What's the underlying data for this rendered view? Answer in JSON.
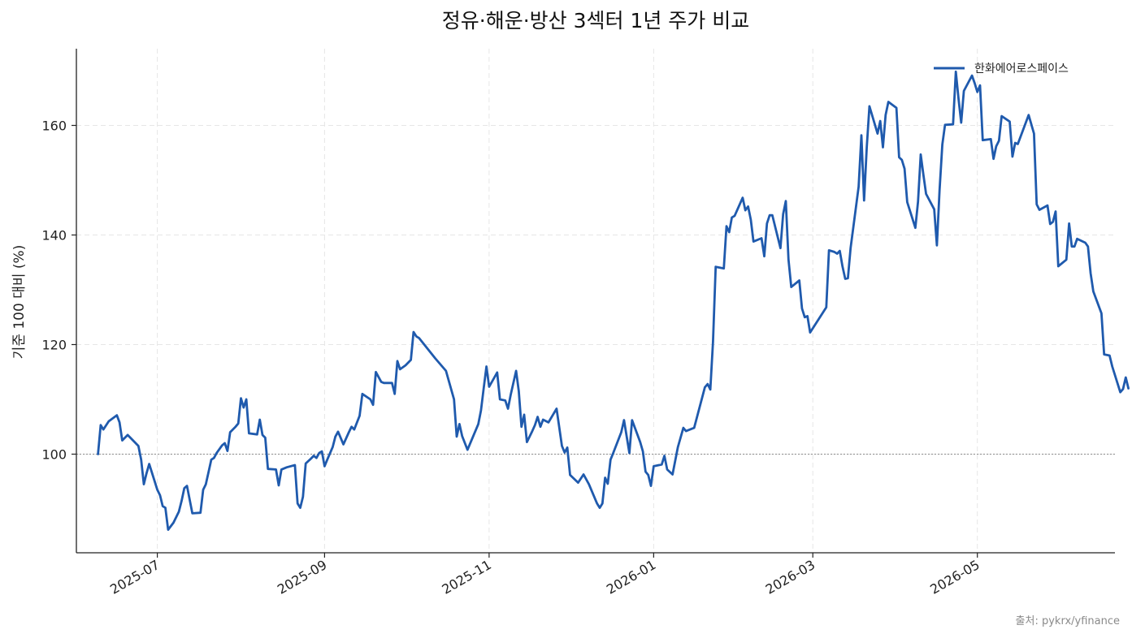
{
  "chart_data": {
    "type": "line",
    "title": "정유·해운·방산 3섹터 1년 주가 비교",
    "xlabel": "",
    "ylabel": "기준 100 대비 (%)",
    "source": "출처: pykrx/yfinance",
    "x_axis": {
      "type": "date",
      "range": [
        "2025-06-01",
        "2026-06-21"
      ],
      "ticks": [
        "2025-07",
        "2025-09",
        "2025-11",
        "2026-01",
        "2026-03",
        "2026-05"
      ]
    },
    "y_axis": {
      "range": [
        82,
        174
      ],
      "ticks": [
        100,
        120,
        140,
        160
      ]
    },
    "grid": true,
    "baseline": 100,
    "legend": {
      "position": "top-right"
    },
    "series": [
      {
        "name": "한화에어로스페이스",
        "color": "#1f5aad",
        "points": [
          [
            "2025-06-09",
            100
          ],
          [
            "2025-06-10",
            105.3
          ],
          [
            "2025-06-11",
            104.5
          ],
          [
            "2025-06-13",
            106
          ],
          [
            "2025-06-16",
            107.1
          ],
          [
            "2025-06-17",
            105.8
          ],
          [
            "2025-06-18",
            102.5
          ],
          [
            "2025-06-20",
            103.5
          ],
          [
            "2025-06-24",
            101.5
          ],
          [
            "2025-06-25",
            99
          ],
          [
            "2025-06-26",
            94.5
          ],
          [
            "2025-06-27",
            96.5
          ],
          [
            "2025-06-28",
            98.2
          ],
          [
            "2025-07-01",
            93.5
          ],
          [
            "2025-07-02",
            92.5
          ],
          [
            "2025-07-03",
            90.5
          ],
          [
            "2025-07-04",
            90.2
          ],
          [
            "2025-07-05",
            86.2
          ],
          [
            "2025-07-07",
            87.5
          ],
          [
            "2025-07-08",
            88.5
          ],
          [
            "2025-07-09",
            89.5
          ],
          [
            "2025-07-10",
            91.5
          ],
          [
            "2025-07-11",
            93.8
          ],
          [
            "2025-07-12",
            94.2
          ],
          [
            "2025-07-14",
            89.2
          ],
          [
            "2025-07-17",
            89.3
          ],
          [
            "2025-07-18",
            93.5
          ],
          [
            "2025-07-19",
            94.5
          ],
          [
            "2025-07-21",
            99
          ],
          [
            "2025-07-22",
            99.3
          ],
          [
            "2025-07-23",
            100.2
          ],
          [
            "2025-07-25",
            101.6
          ],
          [
            "2025-07-26",
            102
          ],
          [
            "2025-07-27",
            100.6
          ],
          [
            "2025-07-28",
            104
          ],
          [
            "2025-07-30",
            105
          ],
          [
            "2025-07-31",
            105.6
          ],
          [
            "2025-08-01",
            110.2
          ],
          [
            "2025-08-02",
            108.5
          ],
          [
            "2025-08-03",
            110
          ],
          [
            "2025-08-04",
            103.8
          ],
          [
            "2025-08-07",
            103.6
          ],
          [
            "2025-08-08",
            106.3
          ],
          [
            "2025-08-09",
            103.5
          ],
          [
            "2025-08-10",
            103
          ],
          [
            "2025-08-11",
            97.3
          ],
          [
            "2025-08-14",
            97.2
          ],
          [
            "2025-08-15",
            94.3
          ],
          [
            "2025-08-16",
            97.2
          ],
          [
            "2025-08-18",
            97.6
          ],
          [
            "2025-08-21",
            98
          ],
          [
            "2025-08-22",
            91
          ],
          [
            "2025-08-23",
            90.2
          ],
          [
            "2025-08-24",
            92.2
          ],
          [
            "2025-08-25",
            98.3
          ],
          [
            "2025-08-27",
            99.2
          ],
          [
            "2025-08-28",
            99.7
          ],
          [
            "2025-08-29",
            99.3
          ],
          [
            "2025-08-30",
            100.2
          ],
          [
            "2025-08-31",
            100.5
          ],
          [
            "2025-09-01",
            97.8
          ],
          [
            "2025-09-02",
            99
          ],
          [
            "2025-09-04",
            101.3
          ],
          [
            "2025-09-05",
            103.2
          ],
          [
            "2025-09-06",
            104.1
          ],
          [
            "2025-09-08",
            101.8
          ],
          [
            "2025-09-10",
            104
          ],
          [
            "2025-09-11",
            105
          ],
          [
            "2025-09-12",
            104.5
          ],
          [
            "2025-09-14",
            107
          ],
          [
            "2025-09-15",
            111
          ],
          [
            "2025-09-18",
            110
          ],
          [
            "2025-09-19",
            109
          ],
          [
            "2025-09-20",
            115
          ],
          [
            "2025-09-22",
            113.2
          ],
          [
            "2025-09-23",
            113
          ],
          [
            "2025-09-26",
            113
          ],
          [
            "2025-09-27",
            111
          ],
          [
            "2025-09-28",
            117
          ],
          [
            "2025-09-29",
            115.5
          ],
          [
            "2025-10-01",
            116.2
          ],
          [
            "2025-10-03",
            117.2
          ],
          [
            "2025-10-04",
            122.3
          ],
          [
            "2025-10-05",
            121.5
          ],
          [
            "2025-10-06",
            121.2
          ],
          [
            "2025-10-12",
            117.5
          ],
          [
            "2025-10-16",
            115.2
          ],
          [
            "2025-10-19",
            110
          ],
          [
            "2025-10-20",
            103.2
          ],
          [
            "2025-10-21",
            105.5
          ],
          [
            "2025-10-22",
            103.3
          ],
          [
            "2025-10-24",
            100.8
          ],
          [
            "2025-10-28",
            105.5
          ],
          [
            "2025-10-29",
            108
          ],
          [
            "2025-10-30",
            112
          ],
          [
            "2025-10-31",
            116
          ],
          [
            "2025-11-01",
            112.3
          ],
          [
            "2025-11-04",
            114.9
          ],
          [
            "2025-11-05",
            110
          ],
          [
            "2025-11-07",
            109.8
          ],
          [
            "2025-11-08",
            108.3
          ],
          [
            "2025-11-09",
            110.8
          ],
          [
            "2025-11-11",
            115.2
          ],
          [
            "2025-11-12",
            111.5
          ],
          [
            "2025-11-13",
            105
          ],
          [
            "2025-11-14",
            107.2
          ],
          [
            "2025-11-15",
            102.2
          ],
          [
            "2025-11-17",
            104.2
          ],
          [
            "2025-11-18",
            105.3
          ],
          [
            "2025-11-19",
            106.8
          ],
          [
            "2025-11-20",
            105
          ],
          [
            "2025-11-21",
            106.3
          ],
          [
            "2025-11-23",
            105.8
          ],
          [
            "2025-11-26",
            108.3
          ],
          [
            "2025-11-28",
            101.5
          ],
          [
            "2025-11-29",
            100.3
          ],
          [
            "2025-11-30",
            101.2
          ],
          [
            "2025-12-01",
            96.2
          ],
          [
            "2025-12-04",
            94.8
          ],
          [
            "2025-12-06",
            96.3
          ],
          [
            "2025-12-08",
            94.5
          ],
          [
            "2025-12-11",
            91
          ],
          [
            "2025-12-12",
            90.2
          ],
          [
            "2025-12-13",
            91
          ],
          [
            "2025-12-14",
            95.7
          ],
          [
            "2025-12-15",
            94.6
          ],
          [
            "2025-12-16",
            99
          ],
          [
            "2025-12-17",
            100.2
          ],
          [
            "2025-12-20",
            104
          ],
          [
            "2025-12-21",
            106.2
          ],
          [
            "2025-12-22",
            103.2
          ],
          [
            "2025-12-23",
            100.2
          ],
          [
            "2025-12-24",
            106.2
          ],
          [
            "2025-12-27",
            102.2
          ],
          [
            "2025-12-28",
            100.5
          ],
          [
            "2025-12-29",
            96.8
          ],
          [
            "2025-12-30",
            96.2
          ],
          [
            "2025-12-31",
            94.2
          ],
          [
            "2026-01-01",
            97.8
          ],
          [
            "2026-01-04",
            98.1
          ],
          [
            "2026-01-05",
            99.7
          ],
          [
            "2026-01-06",
            97.2
          ],
          [
            "2026-01-08",
            96.3
          ],
          [
            "2026-01-10",
            101.3
          ],
          [
            "2026-01-12",
            104.8
          ],
          [
            "2026-01-13",
            104.2
          ],
          [
            "2026-01-16",
            104.8
          ],
          [
            "2026-01-18",
            108.5
          ],
          [
            "2026-01-20",
            112.2
          ],
          [
            "2026-01-21",
            112.8
          ],
          [
            "2026-01-22",
            111.8
          ],
          [
            "2026-01-23",
            120.5
          ],
          [
            "2026-01-24",
            134.2
          ],
          [
            "2026-01-27",
            133.9
          ],
          [
            "2026-01-28",
            141.6
          ],
          [
            "2026-01-29",
            140.5
          ],
          [
            "2026-01-30",
            143.2
          ],
          [
            "2026-01-31",
            143.5
          ],
          [
            "2026-02-03",
            146.8
          ],
          [
            "2026-02-04",
            144.5
          ],
          [
            "2026-02-05",
            145.2
          ],
          [
            "2026-02-06",
            142.8
          ],
          [
            "2026-02-07",
            138.8
          ],
          [
            "2026-02-10",
            139.4
          ],
          [
            "2026-02-11",
            136.1
          ],
          [
            "2026-02-12",
            142.1
          ],
          [
            "2026-02-13",
            143.6
          ],
          [
            "2026-02-14",
            143.6
          ],
          [
            "2026-02-17",
            137.6
          ],
          [
            "2026-02-18",
            143.8
          ],
          [
            "2026-02-19",
            146.2
          ],
          [
            "2026-02-20",
            135.5
          ],
          [
            "2026-02-21",
            130.5
          ],
          [
            "2026-02-24",
            131.7
          ],
          [
            "2026-02-25",
            126.6
          ],
          [
            "2026-02-26",
            125
          ],
          [
            "2026-02-27",
            125.2
          ],
          [
            "2026-02-28",
            122.2
          ],
          [
            "2026-03-06",
            126.8
          ],
          [
            "2026-03-07",
            137.2
          ],
          [
            "2026-03-09",
            136.9
          ],
          [
            "2026-03-10",
            136.6
          ],
          [
            "2026-03-11",
            137.1
          ],
          [
            "2026-03-12",
            134.3
          ],
          [
            "2026-03-13",
            132
          ],
          [
            "2026-03-14",
            132.1
          ],
          [
            "2026-03-15",
            137.6
          ],
          [
            "2026-03-18",
            148.8
          ],
          [
            "2026-03-19",
            158.2
          ],
          [
            "2026-03-20",
            146.3
          ],
          [
            "2026-03-21",
            156
          ],
          [
            "2026-03-22",
            163.5
          ],
          [
            "2026-03-25",
            158.5
          ],
          [
            "2026-03-26",
            160.8
          ],
          [
            "2026-03-27",
            156
          ],
          [
            "2026-03-28",
            161.9
          ],
          [
            "2026-03-29",
            164.3
          ],
          [
            "2026-04-01",
            163.2
          ],
          [
            "2026-04-02",
            154.2
          ],
          [
            "2026-04-03",
            153.7
          ],
          [
            "2026-04-04",
            152.1
          ],
          [
            "2026-04-05",
            146
          ],
          [
            "2026-04-08",
            141.3
          ],
          [
            "2026-04-09",
            146.1
          ],
          [
            "2026-04-10",
            154.7
          ],
          [
            "2026-04-11",
            151
          ],
          [
            "2026-04-12",
            147.5
          ],
          [
            "2026-04-15",
            144.7
          ],
          [
            "2026-04-16",
            138.1
          ],
          [
            "2026-04-17",
            148.2
          ],
          [
            "2026-04-18",
            156.5
          ],
          [
            "2026-04-19",
            160.1
          ],
          [
            "2026-04-22",
            160.2
          ],
          [
            "2026-04-23",
            169.8
          ],
          [
            "2026-04-24",
            164.9
          ],
          [
            "2026-04-25",
            160.5
          ],
          [
            "2026-04-26",
            166.3
          ],
          [
            "2026-04-29",
            169.1
          ],
          [
            "2026-04-30",
            167.7
          ],
          [
            "2026-05-01",
            166.1
          ],
          [
            "2026-05-02",
            167.3
          ],
          [
            "2026-05-03",
            157.3
          ],
          [
            "2026-05-06",
            157.5
          ],
          [
            "2026-05-07",
            153.9
          ],
          [
            "2026-05-08",
            156.2
          ],
          [
            "2026-05-09",
            157.2
          ],
          [
            "2026-05-10",
            161.7
          ],
          [
            "2026-05-13",
            160.7
          ],
          [
            "2026-05-14",
            154.3
          ],
          [
            "2026-05-15",
            156.8
          ],
          [
            "2026-05-16",
            156.6
          ],
          [
            "2026-05-20",
            161.9
          ],
          [
            "2026-05-22",
            158.5
          ],
          [
            "2026-05-23",
            145.6
          ],
          [
            "2026-05-24",
            144.6
          ],
          [
            "2026-05-27",
            145.4
          ],
          [
            "2026-05-28",
            142
          ],
          [
            "2026-05-29",
            142.4
          ],
          [
            "2026-05-30",
            144.3
          ],
          [
            "2026-05-31",
            134.3
          ],
          [
            "2026-06-03",
            135.5
          ],
          [
            "2026-06-04",
            142.1
          ],
          [
            "2026-06-05",
            137.9
          ],
          [
            "2026-06-06",
            137.9
          ],
          [
            "2026-06-07",
            139.3
          ],
          [
            "2026-06-10",
            138.6
          ],
          [
            "2026-06-11",
            137.9
          ],
          [
            "2026-06-12",
            133
          ],
          [
            "2026-06-13",
            129.7
          ],
          [
            "2026-06-16",
            125.7
          ],
          [
            "2026-06-17",
            118.2
          ],
          [
            "2026-06-19",
            118
          ],
          [
            "2026-06-20",
            116
          ],
          [
            "2026-06-23",
            111.3
          ],
          [
            "2026-06-24",
            111.9
          ],
          [
            "2026-06-25",
            114
          ],
          [
            "2026-06-26",
            112
          ]
        ]
      }
    ]
  }
}
